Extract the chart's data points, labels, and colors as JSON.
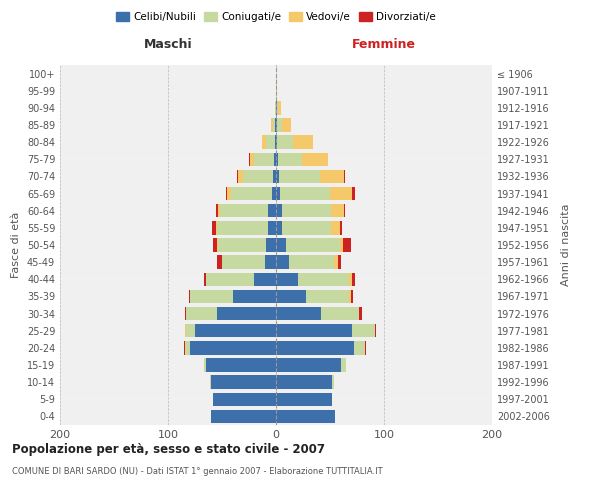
{
  "age_groups": [
    "0-4",
    "5-9",
    "10-14",
    "15-19",
    "20-24",
    "25-29",
    "30-34",
    "35-39",
    "40-44",
    "45-49",
    "50-54",
    "55-59",
    "60-64",
    "65-69",
    "70-74",
    "75-79",
    "80-84",
    "85-89",
    "90-94",
    "95-99",
    "100+"
  ],
  "birth_years": [
    "2002-2006",
    "1997-2001",
    "1992-1996",
    "1987-1991",
    "1982-1986",
    "1977-1981",
    "1972-1976",
    "1967-1971",
    "1962-1966",
    "1957-1961",
    "1952-1956",
    "1947-1951",
    "1942-1946",
    "1937-1941",
    "1932-1936",
    "1927-1931",
    "1922-1926",
    "1917-1921",
    "1912-1916",
    "1907-1911",
    "≤ 1906"
  ],
  "colors": {
    "celibi": "#3d6faa",
    "coniugati": "#c5d9a0",
    "vedovi": "#f5c96a",
    "divorziati": "#cc2222"
  },
  "males": {
    "celibi": [
      60,
      58,
      60,
      65,
      80,
      75,
      55,
      40,
      20,
      10,
      9,
      7,
      7,
      4,
      3,
      2,
      1,
      1,
      0,
      0,
      0
    ],
    "coniugati": [
      0,
      0,
      1,
      2,
      4,
      8,
      28,
      40,
      45,
      40,
      45,
      48,
      45,
      38,
      28,
      18,
      8,
      2,
      1,
      0,
      0
    ],
    "vedovi": [
      0,
      0,
      0,
      0,
      0,
      1,
      0,
      0,
      0,
      0,
      1,
      1,
      2,
      3,
      4,
      4,
      4,
      2,
      0,
      0,
      0
    ],
    "divorziati": [
      0,
      0,
      0,
      0,
      1,
      0,
      1,
      1,
      2,
      5,
      3,
      3,
      2,
      1,
      1,
      1,
      0,
      0,
      0,
      0,
      0
    ]
  },
  "females": {
    "nubili": [
      55,
      52,
      52,
      60,
      72,
      70,
      42,
      28,
      20,
      12,
      9,
      6,
      6,
      4,
      3,
      2,
      1,
      1,
      1,
      0,
      0
    ],
    "coniugate": [
      0,
      0,
      2,
      5,
      10,
      22,
      35,
      40,
      48,
      42,
      50,
      45,
      45,
      46,
      38,
      22,
      15,
      5,
      1,
      0,
      0
    ],
    "vedove": [
      0,
      0,
      0,
      0,
      0,
      0,
      0,
      1,
      2,
      3,
      3,
      8,
      12,
      20,
      22,
      24,
      18,
      8,
      3,
      1,
      0
    ],
    "divorziate": [
      0,
      0,
      0,
      0,
      1,
      1,
      3,
      2,
      3,
      3,
      7,
      2,
      1,
      3,
      1,
      0,
      0,
      0,
      0,
      0,
      0
    ]
  },
  "title": "Popolazione per età, sesso e stato civile - 2007",
  "subtitle": "COMUNE DI BARI SARDO (NU) - Dati ISTAT 1° gennaio 2007 - Elaborazione TUTTITALIA.IT",
  "xlim": 200,
  "ylabel_left": "Fasce di età",
  "ylabel_right": "Anni di nascita",
  "xlabel_maschi": "Maschi",
  "xlabel_femmine": "Femmine",
  "legend_labels": [
    "Celibi/Nubili",
    "Coniugati/e",
    "Vedovi/e",
    "Divorziati/e"
  ],
  "bg_color": "#f0f0f0"
}
